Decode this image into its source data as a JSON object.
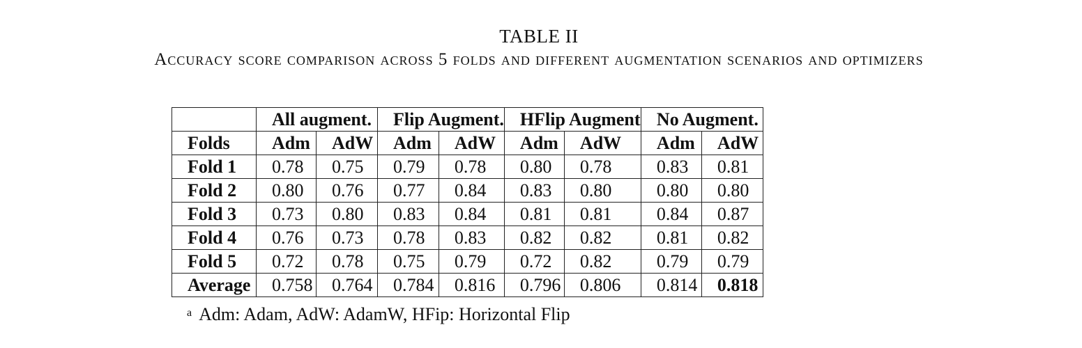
{
  "table_number": "TABLE II",
  "caption": "Accuracy score comparison across 5 folds and different augmentation scenarios and optimizers",
  "groups": [
    "All augment.",
    "Flip Augment.",
    "HFlip Augment",
    "No Augment."
  ],
  "folds_header": "Folds",
  "sub_headers": [
    "Adm",
    "AdW",
    "Adm",
    "AdW",
    "Adm",
    "AdW",
    "Adm",
    "AdW"
  ],
  "rows": [
    {
      "label": "Fold 1",
      "values": [
        "0.78",
        "0.75",
        "0.79",
        "0.78",
        "0.80",
        "0.78",
        "0.83",
        "0.81"
      ]
    },
    {
      "label": "Fold 2",
      "values": [
        "0.80",
        "0.76",
        "0.77",
        "0.84",
        "0.83",
        "0.80",
        "0.80",
        "0.80"
      ]
    },
    {
      "label": "Fold 3",
      "values": [
        "0.73",
        "0.80",
        "0.83",
        "0.84",
        "0.81",
        "0.81",
        "0.84",
        "0.87"
      ]
    },
    {
      "label": "Fold 4",
      "values": [
        "0.76",
        "0.73",
        "0.78",
        "0.83",
        "0.82",
        "0.82",
        "0.81",
        "0.82"
      ]
    },
    {
      "label": "Fold 5",
      "values": [
        "0.72",
        "0.78",
        "0.75",
        "0.79",
        "0.72",
        "0.82",
        "0.79",
        "0.79"
      ]
    },
    {
      "label": "Average",
      "values": [
        "0.758",
        "0.764",
        "0.784",
        "0.816",
        "0.796",
        "0.806",
        "0.814",
        "0.818"
      ]
    }
  ],
  "highlight": {
    "row": 5,
    "col": 7
  },
  "footnote": {
    "marker": "a",
    "text": "Adm: Adam, AdW: AdamW, HFip: Horizontal Flip"
  }
}
